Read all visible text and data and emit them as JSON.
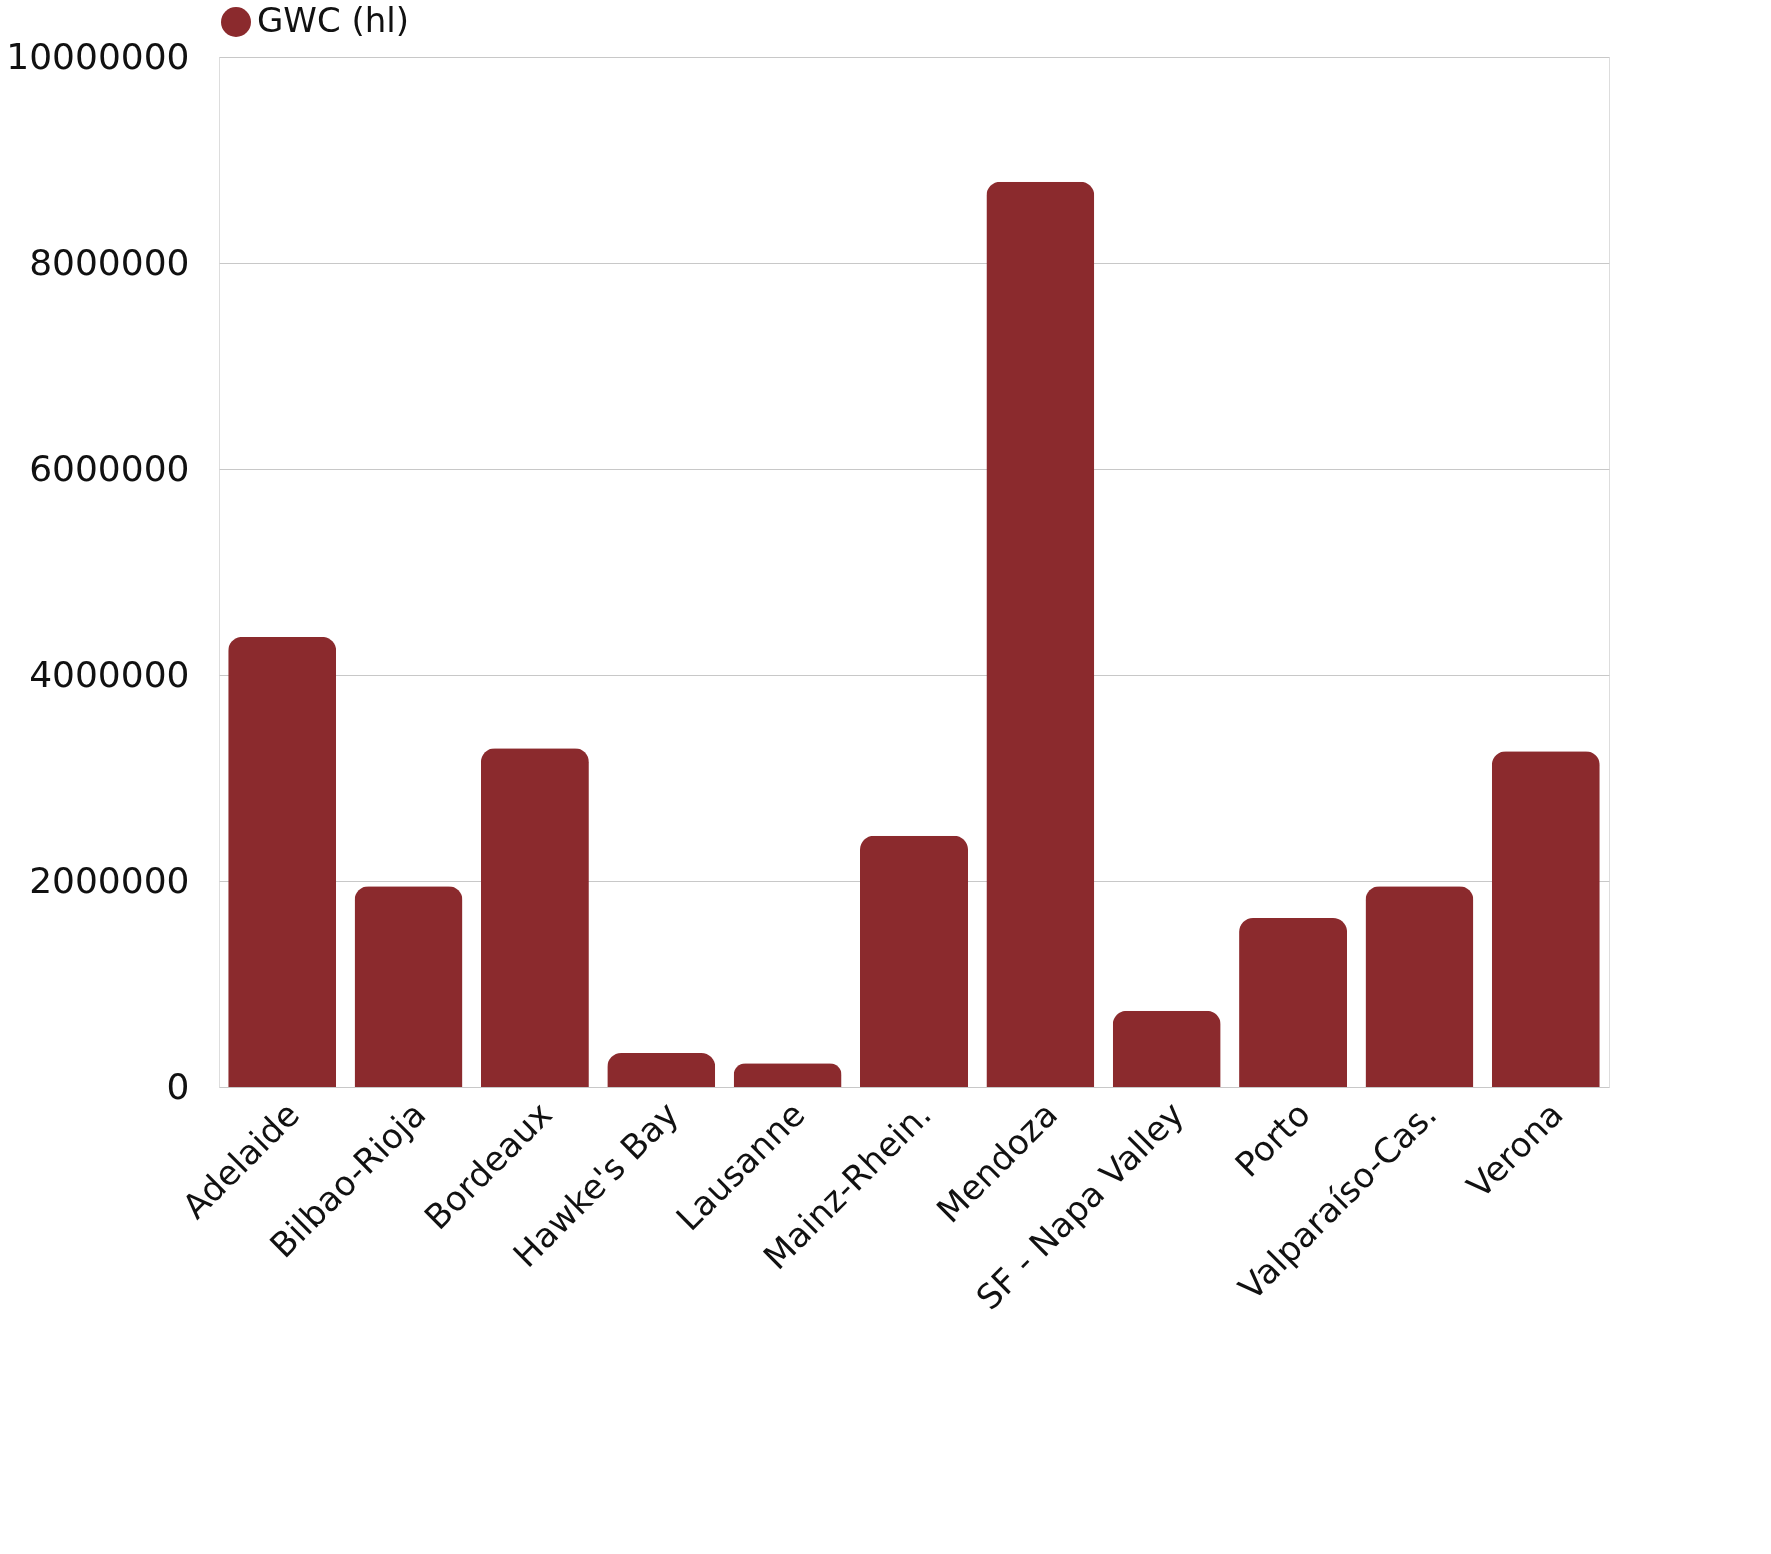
{
  "chart_data": {
    "type": "bar",
    "categories": [
      "Adelaide",
      "Bilbao-Rioja",
      "Bordeaux",
      "Hawke's Bay",
      "Lausanne",
      "Mainz-Rhein.",
      "Mendoza",
      "SF - Napa Valley",
      "Porto",
      "Valparaíso-Cas.",
      "Verona"
    ],
    "series": [
      {
        "name": "GWC (hl)",
        "color": "#8b2a2d",
        "values": [
          4370000,
          1950000,
          3290000,
          330000,
          230000,
          2440000,
          8790000,
          740000,
          1640000,
          1950000,
          3260000
        ]
      }
    ],
    "ylim": [
      0,
      10000000
    ],
    "yticks": [
      0,
      2000000,
      4000000,
      6000000,
      8000000,
      10000000
    ],
    "grid": "y",
    "legend": "top"
  }
}
